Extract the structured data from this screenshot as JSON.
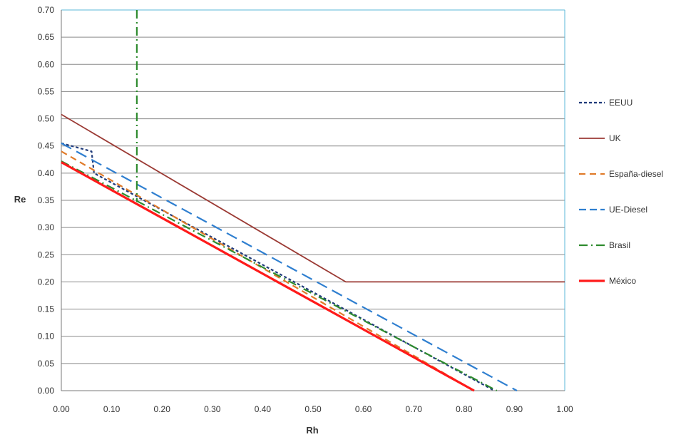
{
  "chart_data": {
    "type": "line",
    "title": "",
    "xlabel": "Rh",
    "ylabel": "Re",
    "xlim": [
      0,
      1
    ],
    "ylim": [
      0,
      0.7
    ],
    "x_ticks": [
      "0.00",
      "0.10",
      "0.20",
      "0.30",
      "0.40",
      "0.50",
      "0.60",
      "0.70",
      "0.80",
      "0.90",
      "1.00"
    ],
    "y_ticks": [
      "0.00",
      "0.05",
      "0.10",
      "0.15",
      "0.20",
      "0.25",
      "0.30",
      "0.35",
      "0.40",
      "0.45",
      "0.50",
      "0.55",
      "0.60",
      "0.65",
      "0.70"
    ],
    "grid": "horizontal",
    "legend_position": "right",
    "series": [
      {
        "name": "EEUU",
        "color": "#1f3a7a",
        "dash": "short-dash",
        "points": [
          [
            0,
            0.455
          ],
          [
            0.06,
            0.44
          ],
          [
            0.065,
            0.4
          ],
          [
            0.86,
            0.0
          ]
        ]
      },
      {
        "name": "UK",
        "color": "#9b3a34",
        "dash": "solid",
        "points": [
          [
            0,
            0.508
          ],
          [
            0.565,
            0.2
          ],
          [
            1.0,
            0.2
          ]
        ]
      },
      {
        "name": "España-diesel",
        "color": "#e07b2a",
        "dash": "dash",
        "points": [
          [
            0,
            0.44
          ],
          [
            0.82,
            0.0
          ]
        ]
      },
      {
        "name": "UE-Diesel",
        "color": "#2f7fd0",
        "dash": "long-dash",
        "points": [
          [
            0,
            0.455
          ],
          [
            0.905,
            0.0
          ]
        ]
      },
      {
        "name": "Brasil",
        "color": "#2e8b2e",
        "dash": "dash-dot",
        "points": [
          [
            0,
            0.422
          ],
          [
            0.865,
            0.0
          ]
        ],
        "vertical_line_x": 0.15
      },
      {
        "name": "México",
        "color": "#ff1a1a",
        "dash": "solid-thick",
        "points": [
          [
            0,
            0.42
          ],
          [
            0.82,
            0.0
          ]
        ]
      }
    ]
  }
}
